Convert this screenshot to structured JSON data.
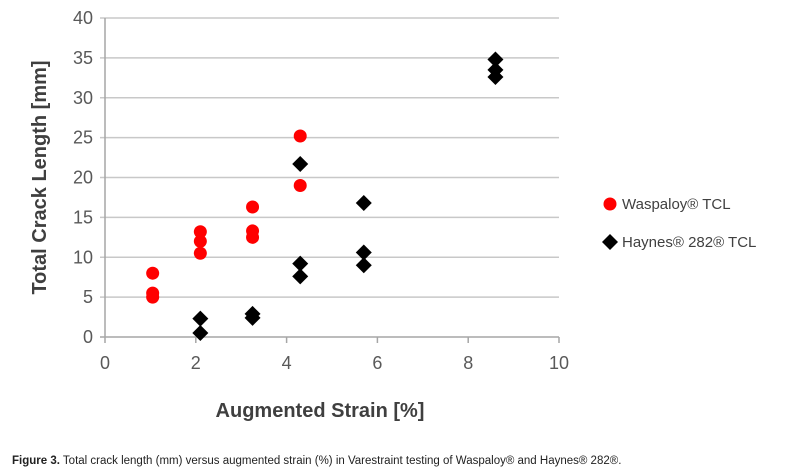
{
  "chart_data": {
    "type": "scatter",
    "title": "",
    "xlabel": "Augmented Strain [%]",
    "ylabel": "Total Crack Length [mm]",
    "xlim": [
      0,
      10
    ],
    "ylim": [
      0,
      40
    ],
    "xticks": [
      0,
      2,
      4,
      6,
      8,
      10
    ],
    "yticks": [
      0,
      5,
      10,
      15,
      20,
      25,
      30,
      35,
      40
    ],
    "grid": "horizontal",
    "legend_position": "right",
    "series": [
      {
        "name": "Waspaloy® TCL",
        "color": "#ff0000",
        "marker": "circle",
        "x": [
          1.05,
          1.05,
          1.05,
          2.1,
          2.1,
          2.1,
          3.25,
          3.25,
          3.25,
          4.3,
          4.3
        ],
        "y": [
          8.0,
          5.5,
          5.0,
          13.2,
          12.0,
          10.5,
          16.3,
          13.3,
          12.5,
          25.2,
          19.0
        ]
      },
      {
        "name": "Haynes® 282® TCL",
        "color": "#000000",
        "marker": "diamond",
        "x": [
          2.1,
          2.1,
          3.25,
          3.25,
          4.3,
          4.3,
          4.3,
          5.7,
          5.7,
          5.7,
          8.6,
          8.6,
          8.6
        ],
        "y": [
          2.3,
          0.5,
          2.9,
          2.4,
          21.7,
          9.2,
          7.6,
          16.8,
          10.6,
          9.0,
          34.8,
          33.5,
          32.6
        ]
      }
    ]
  },
  "caption": {
    "label": "Figure 3.",
    "text": " Total crack length (mm) versus augmented strain (%) in Varestraint testing of Waspaloy® and Haynes® 282®."
  }
}
